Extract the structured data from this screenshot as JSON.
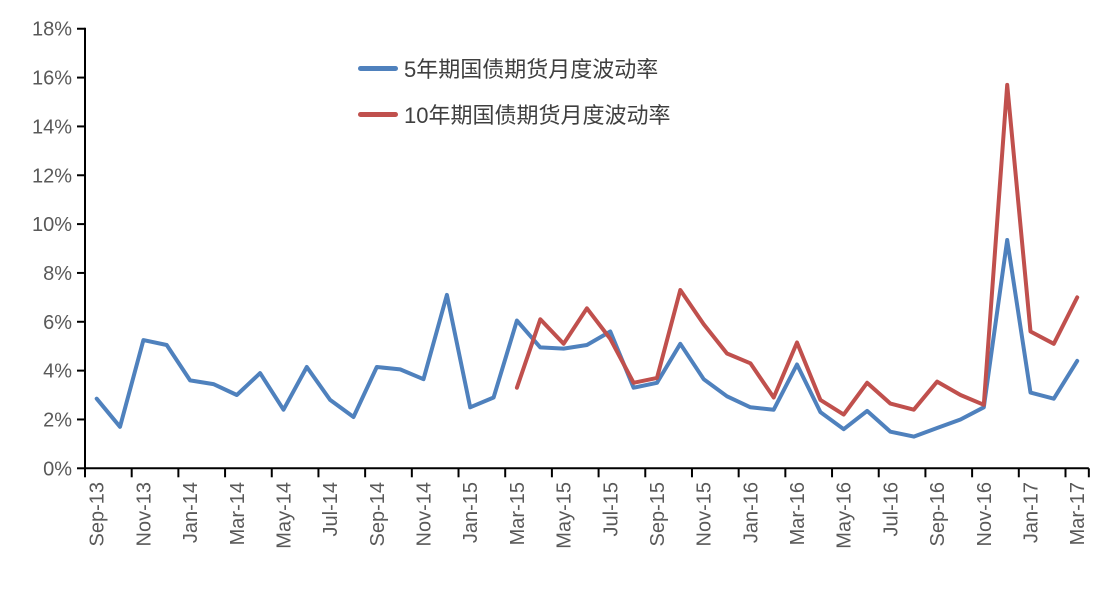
{
  "chart_data": {
    "type": "line",
    "title": "",
    "xlabel": "",
    "ylabel": "",
    "grid": false,
    "legend_position": "top-center-inside",
    "ylim": [
      0,
      18
    ],
    "y_tick_step": 2,
    "y_tick_labels": [
      "0%",
      "2%",
      "4%",
      "6%",
      "8%",
      "10%",
      "12%",
      "14%",
      "16%",
      "18%"
    ],
    "x_label_interval": 2,
    "x_tick_labels_shown": [
      "Sep-13",
      "Nov-13",
      "Jan-14",
      "Mar-14",
      "May-14",
      "Jul-14",
      "Sep-14",
      "Nov-14",
      "Jan-15",
      "Mar-15",
      "May-15",
      "Jul-15",
      "Sep-15",
      "Nov-15",
      "Jan-16",
      "Mar-16",
      "May-16",
      "Jul-16",
      "Sep-16",
      "Nov-16",
      "Jan-17",
      "Mar-17"
    ],
    "categories": [
      "Sep-13",
      "Oct-13",
      "Nov-13",
      "Dec-13",
      "Jan-14",
      "Feb-14",
      "Mar-14",
      "Apr-14",
      "May-14",
      "Jun-14",
      "Jul-14",
      "Aug-14",
      "Sep-14",
      "Oct-14",
      "Nov-14",
      "Dec-14",
      "Jan-15",
      "Feb-15",
      "Mar-15",
      "Apr-15",
      "May-15",
      "Jun-15",
      "Jul-15",
      "Aug-15",
      "Sep-15",
      "Oct-15",
      "Nov-15",
      "Dec-15",
      "Jan-16",
      "Feb-16",
      "Mar-16",
      "Apr-16",
      "May-16",
      "Jun-16",
      "Jul-16",
      "Aug-16",
      "Sep-16",
      "Oct-16",
      "Nov-16",
      "Dec-16",
      "Jan-17",
      "Feb-17",
      "Mar-17"
    ],
    "series": [
      {
        "name": "5年期国债期货月度波动率",
        "color": "#4F81BD",
        "values": [
          2.85,
          1.7,
          5.25,
          5.05,
          3.6,
          3.45,
          3.0,
          3.9,
          2.4,
          4.15,
          2.8,
          2.1,
          4.15,
          4.05,
          3.65,
          7.1,
          2.5,
          2.9,
          6.05,
          4.95,
          4.9,
          5.05,
          5.6,
          3.3,
          3.5,
          5.1,
          3.65,
          2.95,
          2.5,
          2.4,
          4.25,
          2.3,
          1.6,
          2.35,
          1.5,
          1.3,
          1.65,
          2.0,
          2.5,
          9.35,
          3.1,
          2.85,
          4.4
        ]
      },
      {
        "name": "10年期国债期货月度波动率",
        "color": "#C0504D",
        "values": [
          null,
          null,
          null,
          null,
          null,
          null,
          null,
          null,
          null,
          null,
          null,
          null,
          null,
          null,
          null,
          null,
          null,
          null,
          3.3,
          6.1,
          5.1,
          6.55,
          5.3,
          3.5,
          3.7,
          7.3,
          5.9,
          4.7,
          4.3,
          2.9,
          5.15,
          2.8,
          2.2,
          3.5,
          2.65,
          2.4,
          3.55,
          3.0,
          2.6,
          15.7,
          5.6,
          5.1,
          7.0
        ]
      }
    ]
  },
  "legend": {
    "items": [
      {
        "label": "5年期国债期货月度波动率",
        "color": "#4F81BD"
      },
      {
        "label": "10年期国债期货月度波动率",
        "color": "#C0504D"
      }
    ]
  },
  "style": {
    "axis_color": "#000000",
    "tick_label_color": "#595959",
    "legend_text_color": "#3f3f3f",
    "background": "#ffffff"
  }
}
